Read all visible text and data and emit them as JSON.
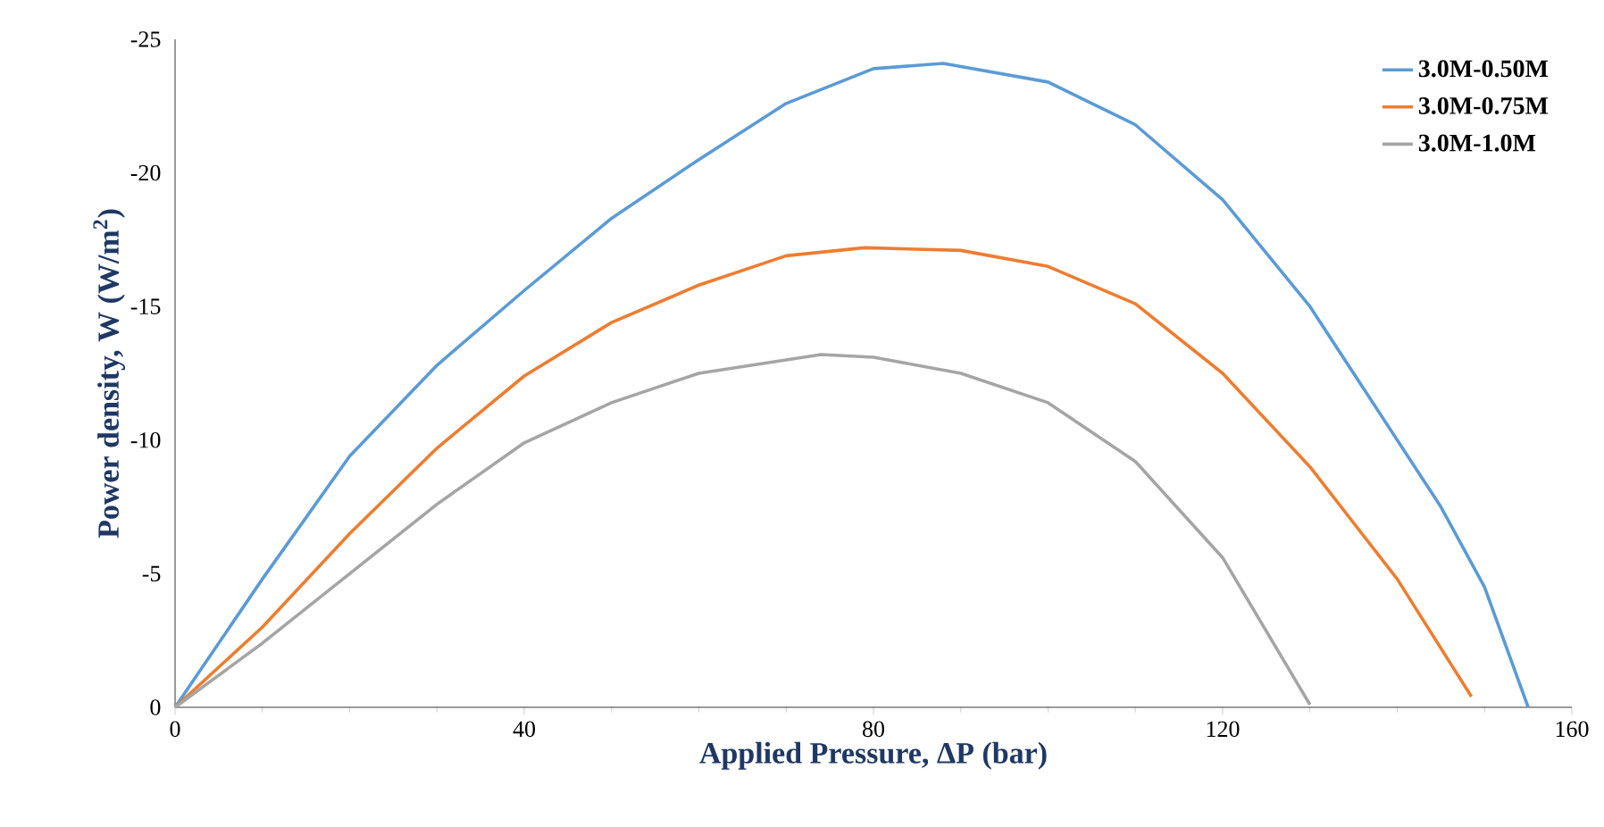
{
  "chart_data": {
    "type": "line",
    "xlabel": "Applied Pressure, ΔP (bar)",
    "ylabel": "Power density, W (W/m$^{2}$)",
    "xlim": [
      0,
      160
    ],
    "xticks": [
      0,
      40,
      80,
      120,
      160
    ],
    "ylim": [
      0,
      -25
    ],
    "yticks": [
      0,
      -5,
      -10,
      -15,
      -20,
      -25
    ],
    "grid": false,
    "legend": "top right",
    "marker": "none",
    "line_style": "solid",
    "series": [
      {
        "name": "3.0M-0.50M",
        "color": "#5b9bd5",
        "x": [
          0,
          10,
          20,
          30,
          40,
          50,
          60,
          70,
          80,
          88,
          100,
          110,
          120,
          130,
          140,
          145,
          150,
          155
        ],
        "values": [
          0,
          -4.8,
          -9.4,
          -12.8,
          -15.6,
          -18.3,
          -20.5,
          -22.6,
          -23.9,
          -24.1,
          -23.4,
          -21.8,
          -19,
          -15,
          -10,
          -7.5,
          -4.5,
          0
        ]
      },
      {
        "name": "3.0M-0.75M",
        "color": "#ed7d31",
        "x": [
          0,
          10,
          20,
          30,
          40,
          50,
          60,
          70,
          79,
          90,
          100,
          110,
          120,
          130,
          140,
          148.5
        ],
        "values": [
          0,
          -3,
          -6.5,
          -9.7,
          -12.4,
          -14.4,
          -15.8,
          -16.9,
          -17.2,
          -17.1,
          -16.5,
          -15.1,
          -12.5,
          -9,
          -4.8,
          -0.4
        ]
      },
      {
        "name": "3.0M-1.0M",
        "color": "#a5a5a5",
        "x": [
          0,
          10,
          20,
          30,
          40,
          50,
          60,
          74,
          80,
          90,
          100,
          110,
          120,
          130
        ],
        "values": [
          0,
          -2.4,
          -5,
          -7.6,
          -9.9,
          -11.4,
          -12.5,
          -13.2,
          -13.1,
          -12.5,
          -11.4,
          -9.2,
          -5.6,
          -0.1
        ]
      }
    ]
  }
}
